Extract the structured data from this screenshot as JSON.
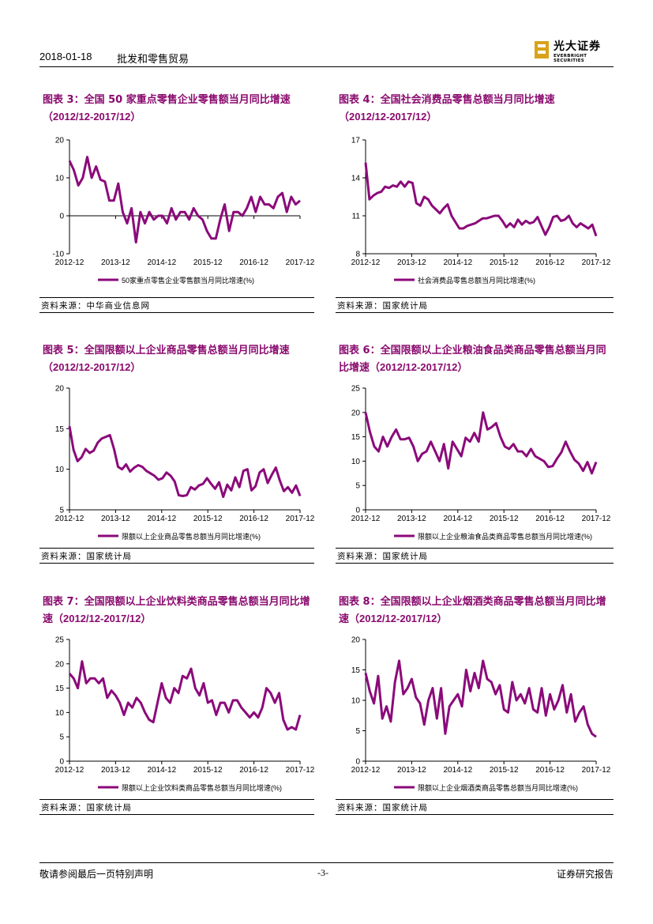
{
  "header": {
    "date": "2018-01-18",
    "category": "批发和零售贸易"
  },
  "logo": {
    "cn": "光大证券",
    "en": "EVERBRIGHT SECURITIES"
  },
  "colors": {
    "series": "#8b0a7a",
    "title": "#8a0a6e"
  },
  "footer": {
    "left": "敬请参阅最后一页特别声明",
    "center": "-3-",
    "right": "证券研究报告"
  },
  "charts": [
    {
      "label": "图表 3：全国 50 家重点零售企业零售额当月同比增速",
      "period": "（2012/12-2017/12）",
      "source": "资料来源：中华商业信息网",
      "chart_data": {
        "type": "line",
        "ylim": [
          -10,
          20
        ],
        "yticks": [
          -10,
          0,
          10,
          20
        ],
        "xticks": [
          "2012-12",
          "2013-12",
          "2014-12",
          "2015-12",
          "2016-12",
          "2017-12"
        ],
        "legend": "50家重点零售企业零售额当月同比增速(%)",
        "series": [
          {
            "name": "50家重点零售企业零售额当月同比增速(%)",
            "values": [
              14.5,
              12,
              8,
              10,
              15.5,
              10,
              13,
              9.5,
              9,
              4,
              4,
              8.5,
              1,
              -2,
              2,
              -7,
              1,
              -2,
              1,
              -1,
              0,
              0,
              -2,
              2,
              -1,
              1,
              1,
              -1,
              2,
              0,
              -1,
              -4,
              -6,
              -6,
              -1,
              3,
              -4,
              1,
              1,
              0,
              2,
              5,
              1,
              5,
              3,
              3,
              2,
              5,
              6,
              1,
              5,
              3,
              4
            ]
          }
        ]
      }
    },
    {
      "label": "图表 4：全国社会消费品零售总额当月同比增速",
      "period": "（2012/12-2017/12）",
      "source": "资料来源：国家统计局",
      "chart_data": {
        "type": "line",
        "ylim": [
          8,
          17
        ],
        "yticks": [
          8,
          11,
          14,
          17
        ],
        "xticks": [
          "2012-12",
          "2013-12",
          "2014-12",
          "2015-12",
          "2016-12",
          "2017-12"
        ],
        "legend": "社会消费品零售总额当月同比增速(%)",
        "series": [
          {
            "name": "社会消费品零售总额当月同比增速(%)",
            "values": [
              15.2,
              12.3,
              12.6,
              12.8,
              12.9,
              13.3,
              13.2,
              13.4,
              13.3,
              13.7,
              13.3,
              13.7,
              13.6,
              12.0,
              11.8,
              12.5,
              12.3,
              11.8,
              11.5,
              11.2,
              11.6,
              11.9,
              11.0,
              10.5,
              10.0,
              10.0,
              10.2,
              10.3,
              10.4,
              10.6,
              10.8,
              10.8,
              10.9,
              11.0,
              11.0,
              10.6,
              10.1,
              10.4,
              10.1,
              10.7,
              10.3,
              10.6,
              10.4,
              10.5,
              10.9,
              10.2,
              9.5,
              10.1,
              10.9,
              11.0,
              10.6,
              10.7,
              11.0,
              10.4,
              10.1,
              10.4,
              10.2,
              10.0,
              10.3,
              9.4
            ]
          }
        ]
      }
    },
    {
      "label": "图表 5：全国限额以上企业商品零售总额当月同比增速",
      "period": "（2012/12-2017/12）",
      "source": "资料来源：国家统计局",
      "chart_data": {
        "type": "line",
        "ylim": [
          5,
          20
        ],
        "yticks": [
          5,
          10,
          15,
          20
        ],
        "xticks": [
          "2012-12",
          "2013-12",
          "2014-12",
          "2015-12",
          "2016-12",
          "2017-12"
        ],
        "legend": "限额以上企业商品零售总额当月同比增速(%)",
        "series": [
          {
            "name": "限额以上企业商品零售总额当月同比增速(%)",
            "values": [
              15.3,
              12.4,
              11.0,
              11.5,
              12.5,
              12.0,
              12.3,
              13.3,
              13.8,
              14.0,
              14.2,
              12.5,
              10.3,
              10.0,
              10.6,
              9.7,
              10.2,
              10.5,
              10.3,
              9.8,
              9.5,
              9.2,
              8.7,
              8.9,
              9.6,
              9.2,
              8.5,
              6.8,
              6.7,
              6.8,
              7.8,
              7.5,
              8.0,
              8.2,
              8.9,
              8.2,
              7.6,
              8.4,
              6.6,
              8.1,
              7.4,
              9.0,
              7.8,
              9.8,
              10.0,
              7.4,
              7.9,
              9.6,
              10.0,
              8.3,
              9.3,
              10.2,
              8.6,
              7.3,
              7.8,
              7.1,
              8.0,
              6.7
            ]
          }
        ]
      }
    },
    {
      "label": "图表 6：全国限额以上企业粮油食品类商品零售总额当月同比增速",
      "period": "（2012/12-2017/12）",
      "source": "资料来源：国家统计局",
      "chart_data": {
        "type": "line",
        "ylim": [
          0,
          25
        ],
        "yticks": [
          0,
          5,
          10,
          15,
          20,
          25
        ],
        "xticks": [
          "2012-12",
          "2013-12",
          "2014-12",
          "2015-12",
          "2016-12",
          "2017-12"
        ],
        "legend": "限额以上企业粮油食品类商品零售总额当月同比增速(%)",
        "series": [
          {
            "name": "限额以上企业粮油食品类商品零售总额当月同比增速(%)",
            "values": [
              20,
              16,
              13,
              12,
              15,
              13,
              15,
              16.5,
              14.5,
              14.5,
              14.8,
              13,
              10,
              11.5,
              12,
              14,
              12,
              10,
              13.5,
              8.5,
              14,
              12.5,
              11,
              14.8,
              14,
              15.8,
              14,
              20,
              16.5,
              17,
              17.8,
              15,
              13,
              12.5,
              13.5,
              12,
              12,
              11,
              12.5,
              11,
              10.5,
              10,
              8.8,
              9,
              10.5,
              11.8,
              14,
              12,
              10.3,
              9.5,
              8,
              9.8,
              7.5,
              9.8
            ]
          }
        ]
      }
    },
    {
      "label": "图表 7：全国限额以上企业饮料类商品零售总额当月同比增速",
      "period": "（2012/12-2017/12）",
      "source": "资料来源：国家统计局",
      "chart_data": {
        "type": "line",
        "ylim": [
          0,
          25
        ],
        "yticks": [
          0,
          5,
          10,
          15,
          20,
          25
        ],
        "xticks": [
          "2012-12",
          "2013-12",
          "2014-12",
          "2015-12",
          "2016-12",
          "2017-12"
        ],
        "legend": "限额以上企业饮料类商品零售总额当月同比增速(%)",
        "series": [
          {
            "name": "限额以上企业饮料类商品零售总额当月同比增速(%)",
            "values": [
              18,
              17,
              15,
              20.5,
              16,
              17,
              17,
              16,
              17,
              13,
              14.5,
              13.5,
              12,
              9.5,
              12,
              11,
              13,
              12,
              10,
              8.5,
              8,
              12,
              16,
              13,
              12,
              15,
              14,
              17.5,
              17,
              19,
              15,
              13.5,
              16,
              12,
              12.5,
              9.5,
              12,
              12,
              10,
              12.5,
              12.5,
              11,
              10,
              9,
              10,
              9,
              11,
              15,
              14,
              12,
              14,
              8.5,
              6.5,
              7,
              6.5,
              9.5
            ]
          }
        ]
      }
    },
    {
      "label": "图表 8：全国限额以上企业烟酒类商品零售总额当月同比增速",
      "period": "（2012/12-2017/12）",
      "source": "资料来源：国家统计局",
      "chart_data": {
        "type": "line",
        "ylim": [
          0,
          20
        ],
        "yticks": [
          0,
          5,
          10,
          15,
          20
        ],
        "xticks": [
          "2012-12",
          "2013-12",
          "2014-12",
          "2015-12",
          "2016-12",
          "2017-12"
        ],
        "legend": "限额以上企业烟酒类商品零售总额当月同比增速(%)",
        "series": [
          {
            "name": "限额以上企业烟酒类商品零售总额当月同比增速(%)",
            "values": [
              14.5,
              11.5,
              9.5,
              14,
              7,
              9,
              6.5,
              13,
              16.5,
              11,
              12,
              13.5,
              10.5,
              9.5,
              6,
              10,
              12,
              7,
              12,
              4.5,
              9,
              10,
              11,
              9,
              15,
              11.5,
              14.5,
              12,
              16.5,
              13.5,
              13,
              11,
              12.5,
              8.5,
              8,
              13,
              10,
              11,
              9.5,
              12,
              8.5,
              8,
              12,
              7.5,
              11,
              8.5,
              10,
              12.5,
              8,
              11,
              6.5,
              8,
              9,
              6,
              4.5,
              4
            ]
          }
        ]
      }
    }
  ]
}
